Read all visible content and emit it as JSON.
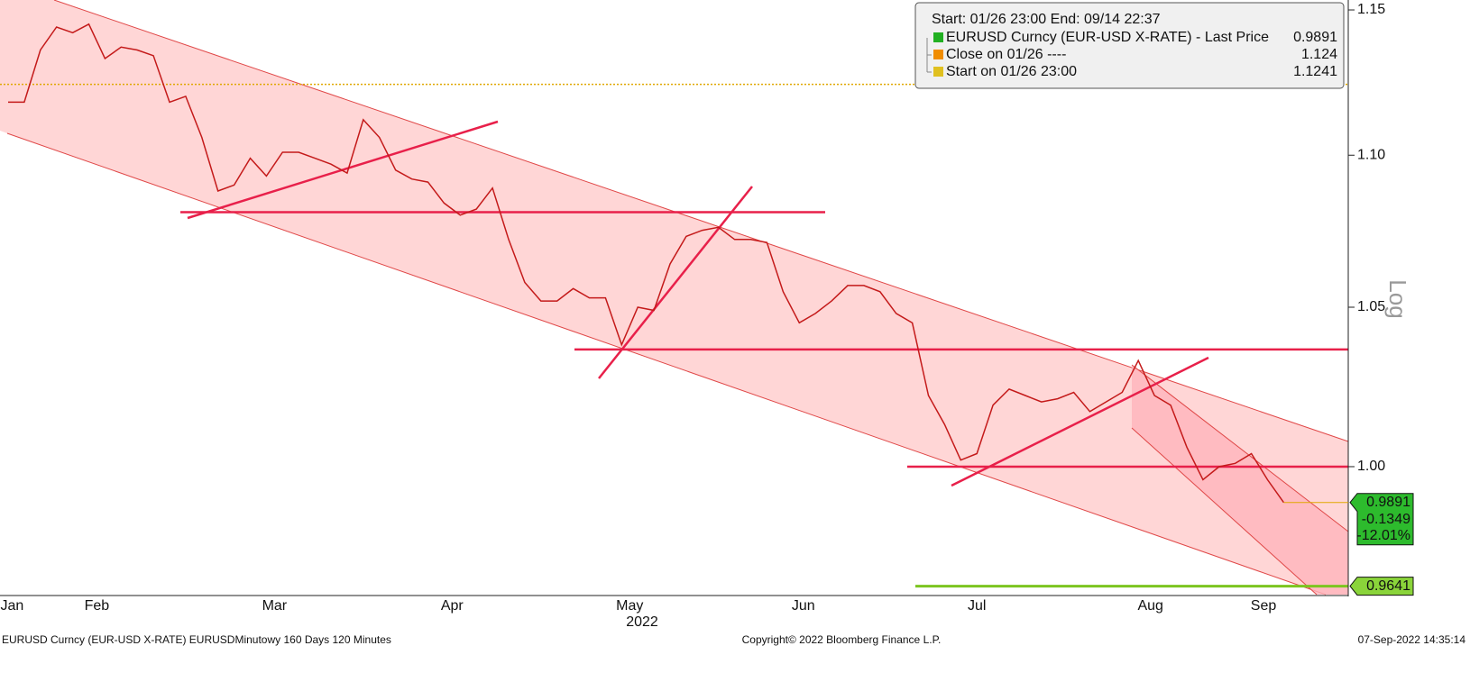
{
  "chart_data": {
    "type": "line",
    "log_scale": true,
    "legend_title": "Start: 01/26 23:00 End: 09/14 22:37",
    "legend": [
      {
        "label": "EURUSD Curncy (EUR-USD X-RATE) - Last Price",
        "value": 0.9891,
        "color": "#22b022"
      },
      {
        "label": "Close on 01/26 ----",
        "value": 1.124,
        "color": "#f08c00"
      },
      {
        "label": "Start on 01/26 23:00",
        "value": 1.1241,
        "color": "#e0c020"
      }
    ],
    "x": [
      0,
      2,
      4,
      6,
      8,
      10,
      12,
      14,
      16,
      18,
      20,
      22,
      24,
      26,
      28,
      30,
      32,
      34,
      36,
      38,
      40,
      42,
      44,
      46,
      48,
      50,
      52,
      54,
      56,
      58,
      60,
      62,
      64,
      66,
      68,
      70,
      72,
      74,
      76,
      78,
      80,
      82,
      84,
      86,
      88,
      90,
      92,
      94,
      96,
      98,
      100,
      102,
      104,
      106,
      108,
      110,
      112,
      114,
      116,
      118,
      120,
      122,
      124,
      126,
      128,
      130,
      132,
      134,
      136,
      138,
      140,
      142,
      144,
      146,
      148,
      150,
      152,
      154,
      156,
      158
    ],
    "series": [
      {
        "name": "EURUSD Curncy (EUR-USD X-RATE) - Last Price",
        "color": "#c41a1a",
        "values": [
          1.118,
          1.118,
          1.136,
          1.144,
          1.142,
          1.145,
          1.133,
          1.137,
          1.136,
          1.134,
          1.118,
          1.12,
          1.106,
          1.088,
          1.09,
          1.099,
          1.093,
          1.101,
          1.101,
          1.099,
          1.097,
          1.094,
          1.112,
          1.106,
          1.095,
          1.092,
          1.091,
          1.084,
          1.08,
          1.082,
          1.089,
          1.072,
          1.058,
          1.052,
          1.052,
          1.056,
          1.053,
          1.053,
          1.038,
          1.05,
          1.049,
          1.064,
          1.073,
          1.075,
          1.076,
          1.072,
          1.072,
          1.071,
          1.055,
          1.045,
          1.048,
          1.052,
          1.057,
          1.057,
          1.055,
          1.048,
          1.045,
          1.022,
          1.013,
          1.002,
          1.004,
          1.019,
          1.024,
          1.022,
          1.02,
          1.021,
          1.023,
          1.017,
          1.02,
          1.023,
          1.033,
          1.022,
          1.019,
          1.006,
          0.996,
          1.0,
          1.001,
          1.004,
          0.996,
          0.9891
        ]
      }
    ],
    "xlim": [
      -1,
      166
    ],
    "xticks": [
      {
        "value": 0.5,
        "label": "Jan"
      },
      {
        "value": 11,
        "label": "Feb"
      },
      {
        "value": 33,
        "label": "Mar"
      },
      {
        "value": 55,
        "label": "Apr"
      },
      {
        "value": 77,
        "label": "May"
      },
      {
        "value": 98.5,
        "label": "Jun"
      },
      {
        "value": 120,
        "label": "Jul"
      },
      {
        "value": 141.5,
        "label": "Aug"
      },
      {
        "value": 155.5,
        "label": "Sep"
      }
    ],
    "x_year_label": "2022",
    "ylim": [
      0.9616,
      1.1535
    ],
    "yticks": [
      1.15,
      {
        "value": 1.1,
        "label": "1.10"
      },
      1.05,
      {
        "value": 1,
        "label": "1.00"
      }
    ],
    "y_scale_label": "Log",
    "levels": [
      1.081,
      1.0365,
      1.0
    ],
    "last_price": 0.9891,
    "change": -0.1349,
    "change_pct": {
      "value": -12.01,
      "label": "-12.01%"
    },
    "support": 0.9641,
    "footer_left": "EURUSD Curncy (EUR-USD X-RATE) EURUSDMinutowy 160 Days 120 Minutes",
    "footer_center": "Copyright© 2022 Bloomberg Finance L.P.",
    "footer_right": "07-Sep-2022 14:35:14"
  }
}
